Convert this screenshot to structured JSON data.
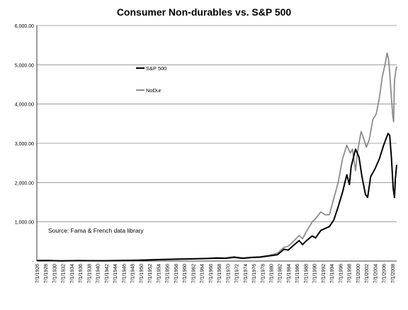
{
  "chart_data": {
    "type": "line",
    "title": "Consumer Non-durables vs. S&P 500",
    "xlabel": "",
    "ylabel": "",
    "ylim": [
      0,
      6000
    ],
    "y_ticks": [
      {
        "value": 6000,
        "label": "6,000.00"
      },
      {
        "value": 5000,
        "label": "5,000.00"
      },
      {
        "value": 4000,
        "label": "4,000.00"
      },
      {
        "value": 3000,
        "label": "3,000.00"
      },
      {
        "value": 2000,
        "label": "2,000.00"
      },
      {
        "value": 1000,
        "label": "1,000.00"
      },
      {
        "value": 0,
        "label": "-"
      }
    ],
    "x_ticks": [
      "7/1/1926",
      "7/1/1928",
      "7/1/1930",
      "7/1/1932",
      "7/1/1934",
      "7/1/1936",
      "7/1/1938",
      "7/1/1940",
      "7/1/1942",
      "7/1/1944",
      "7/1/1946",
      "7/1/1948",
      "7/1/1950",
      "7/1/1952",
      "7/1/1954",
      "7/1/1956",
      "7/1/1958",
      "7/1/1960",
      "7/1/1962",
      "7/1/1964",
      "7/1/1966",
      "7/1/1968",
      "7/1/1970",
      "7/1/1972",
      "7/1/1974",
      "7/1/1976",
      "7/1/1978",
      "7/1/1980",
      "7/1/1982",
      "7/1/1984",
      "7/1/1986",
      "7/1/1988",
      "7/1/1990",
      "7/1/1992",
      "7/1/1994",
      "7/1/1996",
      "7/1/1998",
      "7/1/2000",
      "7/1/2002",
      "7/1/2004",
      "7/1/2006",
      "7/1/2008"
    ],
    "x_range": [
      1926.5,
      2009.5
    ],
    "grid": "horizontal",
    "legend_position": "left-top inside plot",
    "annotation": "Source: Fama  & French data library",
    "series": [
      {
        "name": "S&P 500",
        "color": "#000000",
        "points": [
          [
            1926.5,
            10
          ],
          [
            1929,
            14
          ],
          [
            1932,
            5
          ],
          [
            1936,
            10
          ],
          [
            1942,
            8
          ],
          [
            1946,
            15
          ],
          [
            1950,
            20
          ],
          [
            1954,
            35
          ],
          [
            1958,
            45
          ],
          [
            1962,
            55
          ],
          [
            1966,
            65
          ],
          [
            1968,
            75
          ],
          [
            1970,
            70
          ],
          [
            1972,
            95
          ],
          [
            1974,
            70
          ],
          [
            1976,
            90
          ],
          [
            1978,
            100
          ],
          [
            1980,
            130
          ],
          [
            1982,
            160
          ],
          [
            1983.5,
            300
          ],
          [
            1984.5,
            280
          ],
          [
            1985.5,
            380
          ],
          [
            1987,
            520
          ],
          [
            1987.8,
            420
          ],
          [
            1988.5,
            500
          ],
          [
            1990,
            640
          ],
          [
            1990.8,
            590
          ],
          [
            1992,
            780
          ],
          [
            1994,
            880
          ],
          [
            1995,
            1050
          ],
          [
            1996,
            1380
          ],
          [
            1997,
            1750
          ],
          [
            1998,
            2200
          ],
          [
            1998.6,
            1950
          ],
          [
            1999,
            2400
          ],
          [
            2000,
            2850
          ],
          [
            2000.8,
            2650
          ],
          [
            2001.5,
            2150
          ],
          [
            2002.3,
            1700
          ],
          [
            2002.8,
            1620
          ],
          [
            2003.5,
            2150
          ],
          [
            2004.5,
            2350
          ],
          [
            2005.5,
            2600
          ],
          [
            2006.5,
            2950
          ],
          [
            2007.5,
            3250
          ],
          [
            2007.9,
            3200
          ],
          [
            2008.3,
            2600
          ],
          [
            2008.7,
            1850
          ],
          [
            2009,
            1620
          ],
          [
            2009.2,
            2100
          ],
          [
            2009.5,
            2450
          ]
        ]
      },
      {
        "name": "NoDur",
        "color": "#8c8c8c",
        "points": [
          [
            1926.5,
            12
          ],
          [
            1929,
            16
          ],
          [
            1932,
            6
          ],
          [
            1936,
            12
          ],
          [
            1942,
            10
          ],
          [
            1946,
            18
          ],
          [
            1950,
            25
          ],
          [
            1954,
            40
          ],
          [
            1958,
            50
          ],
          [
            1962,
            60
          ],
          [
            1966,
            70
          ],
          [
            1968,
            85
          ],
          [
            1970,
            80
          ],
          [
            1972,
            110
          ],
          [
            1974,
            80
          ],
          [
            1976,
            100
          ],
          [
            1978,
            110
          ],
          [
            1980,
            140
          ],
          [
            1982,
            200
          ],
          [
            1983.5,
            350
          ],
          [
            1984.5,
            380
          ],
          [
            1985.5,
            480
          ],
          [
            1987,
            650
          ],
          [
            1987.8,
            570
          ],
          [
            1988.5,
            720
          ],
          [
            1990,
            1000
          ],
          [
            1990.8,
            1080
          ],
          [
            1992,
            1250
          ],
          [
            1993,
            1180
          ],
          [
            1994,
            1180
          ],
          [
            1995,
            1600
          ],
          [
            1996,
            2000
          ],
          [
            1997,
            2600
          ],
          [
            1998,
            2950
          ],
          [
            1998.8,
            2750
          ],
          [
            1999.3,
            2850
          ],
          [
            2000,
            2300
          ],
          [
            2000.5,
            2800
          ],
          [
            2001.3,
            3300
          ],
          [
            2001.8,
            3150
          ],
          [
            2002.5,
            2900
          ],
          [
            2003.2,
            3100
          ],
          [
            2004,
            3600
          ],
          [
            2004.8,
            3750
          ],
          [
            2005.5,
            4150
          ],
          [
            2006.2,
            4700
          ],
          [
            2006.8,
            5000
          ],
          [
            2007.3,
            5300
          ],
          [
            2007.6,
            5150
          ],
          [
            2007.9,
            4800
          ],
          [
            2008.2,
            4300
          ],
          [
            2008.6,
            3700
          ],
          [
            2008.8,
            3550
          ],
          [
            2009.0,
            4600
          ],
          [
            2009.3,
            4850
          ],
          [
            2009.5,
            4950
          ]
        ]
      }
    ]
  }
}
